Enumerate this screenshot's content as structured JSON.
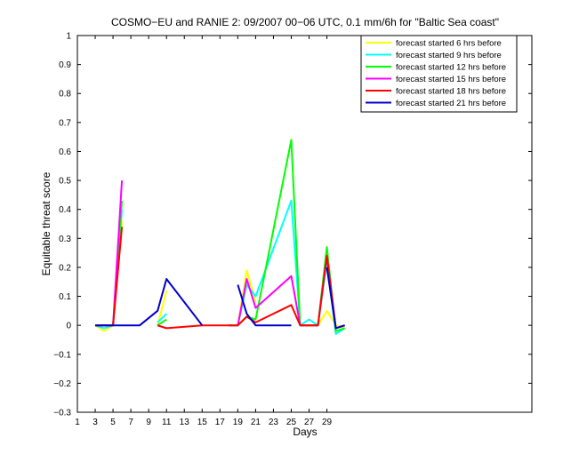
{
  "chart_data": {
    "type": "line",
    "title": "COSMO−EU and RANIE 2: 09/2007 00−06 UTC, 0.1 mm/6h for \"Baltic Sea coast\"",
    "xlabel": "Days",
    "ylabel": "Equitable threat score",
    "xlim": [
      1,
      52
    ],
    "ylim": [
      -0.3,
      1
    ],
    "xticks": [
      1,
      3,
      5,
      7,
      9,
      11,
      13,
      15,
      17,
      19,
      21,
      23,
      25,
      27,
      29
    ],
    "yticks": [
      -0.3,
      -0.2,
      -0.1,
      0,
      0.1,
      0.2,
      0.3,
      0.4,
      0.5,
      0.6,
      0.7,
      0.8,
      0.9,
      1
    ],
    "ytick_labels": [
      "−0.3",
      "−0.2",
      "−0.1",
      "0",
      "0.1",
      "0.2",
      "0.3",
      "0.4",
      "0.5",
      "0.6",
      "0.7",
      "0.8",
      "0.9",
      "1"
    ],
    "legend_position": "top-right",
    "grid": false,
    "series": [
      {
        "name": "forecast started 6 hrs before",
        "color": "#ffff00",
        "x": [
          1,
          3,
          4,
          5,
          6,
          8,
          10,
          11,
          15,
          18,
          19,
          20,
          21,
          25,
          26,
          27,
          28,
          29,
          30,
          31
        ],
        "y": [
          null,
          0,
          -0.02,
          0,
          0.36,
          null,
          0,
          0.12,
          null,
          0,
          0,
          0.19,
          0.08,
          null,
          0,
          0,
          0,
          0.05,
          0,
          -0.01
        ]
      },
      {
        "name": "forecast started 9 hrs before",
        "color": "#00ffff",
        "x": [
          1,
          3,
          4,
          5,
          6,
          8,
          10,
          11,
          15,
          18,
          19,
          20,
          21,
          25,
          26,
          27,
          28,
          29,
          30,
          31
        ],
        "y": [
          null,
          0,
          -0.01,
          0,
          0.4,
          null,
          0.01,
          0.04,
          null,
          0,
          0,
          0.14,
          0.1,
          0.43,
          0,
          0.02,
          0,
          0.22,
          -0.03,
          -0.01
        ]
      },
      {
        "name": "forecast started 12 hrs before",
        "color": "#00ff00",
        "x": [
          1,
          3,
          4,
          5,
          6,
          8,
          10,
          11,
          15,
          18,
          19,
          20,
          21,
          25,
          26,
          27,
          28,
          29,
          30,
          31
        ],
        "y": [
          null,
          0,
          0,
          0,
          0.43,
          null,
          0,
          0.02,
          null,
          0,
          0,
          0.03,
          0.02,
          0.64,
          0,
          0,
          0,
          0.27,
          -0.02,
          -0.01
        ]
      },
      {
        "name": "forecast started 15 hrs before",
        "color": "#ff00ff",
        "x": [
          1,
          3,
          4,
          5,
          6,
          8,
          10,
          11,
          15,
          18,
          19,
          20,
          21,
          25,
          26,
          27,
          28,
          29,
          30,
          31
        ],
        "y": [
          null,
          0,
          0,
          0,
          0.5,
          null,
          0,
          -0.01,
          null,
          0,
          0,
          0.16,
          0.06,
          0.17,
          0,
          0,
          0,
          0.24,
          -0.01,
          0
        ]
      },
      {
        "name": "forecast started 18 hrs before",
        "color": "#ff0000",
        "x": [
          1,
          3,
          4,
          5,
          6,
          8,
          10,
          11,
          15,
          18,
          19,
          20,
          21,
          25,
          26,
          27,
          28,
          29,
          30,
          31
        ],
        "y": [
          null,
          0,
          0,
          0,
          0.34,
          null,
          0,
          -0.01,
          0,
          0,
          0,
          0.03,
          0.01,
          0.07,
          0,
          0,
          0,
          0.24,
          -0.01,
          0
        ]
      },
      {
        "name": "forecast started 21 hrs before",
        "color": "#0000cc",
        "x": [
          1,
          3,
          4,
          5,
          6,
          8,
          10,
          11,
          15,
          18,
          19,
          20,
          21,
          25,
          26,
          27,
          28,
          29,
          30,
          31
        ],
        "y": [
          null,
          0,
          0,
          0,
          0,
          0,
          0.05,
          0.16,
          0,
          null,
          0.14,
          0.04,
          0,
          0,
          null,
          null,
          null,
          0.2,
          -0.01,
          0
        ]
      }
    ]
  }
}
